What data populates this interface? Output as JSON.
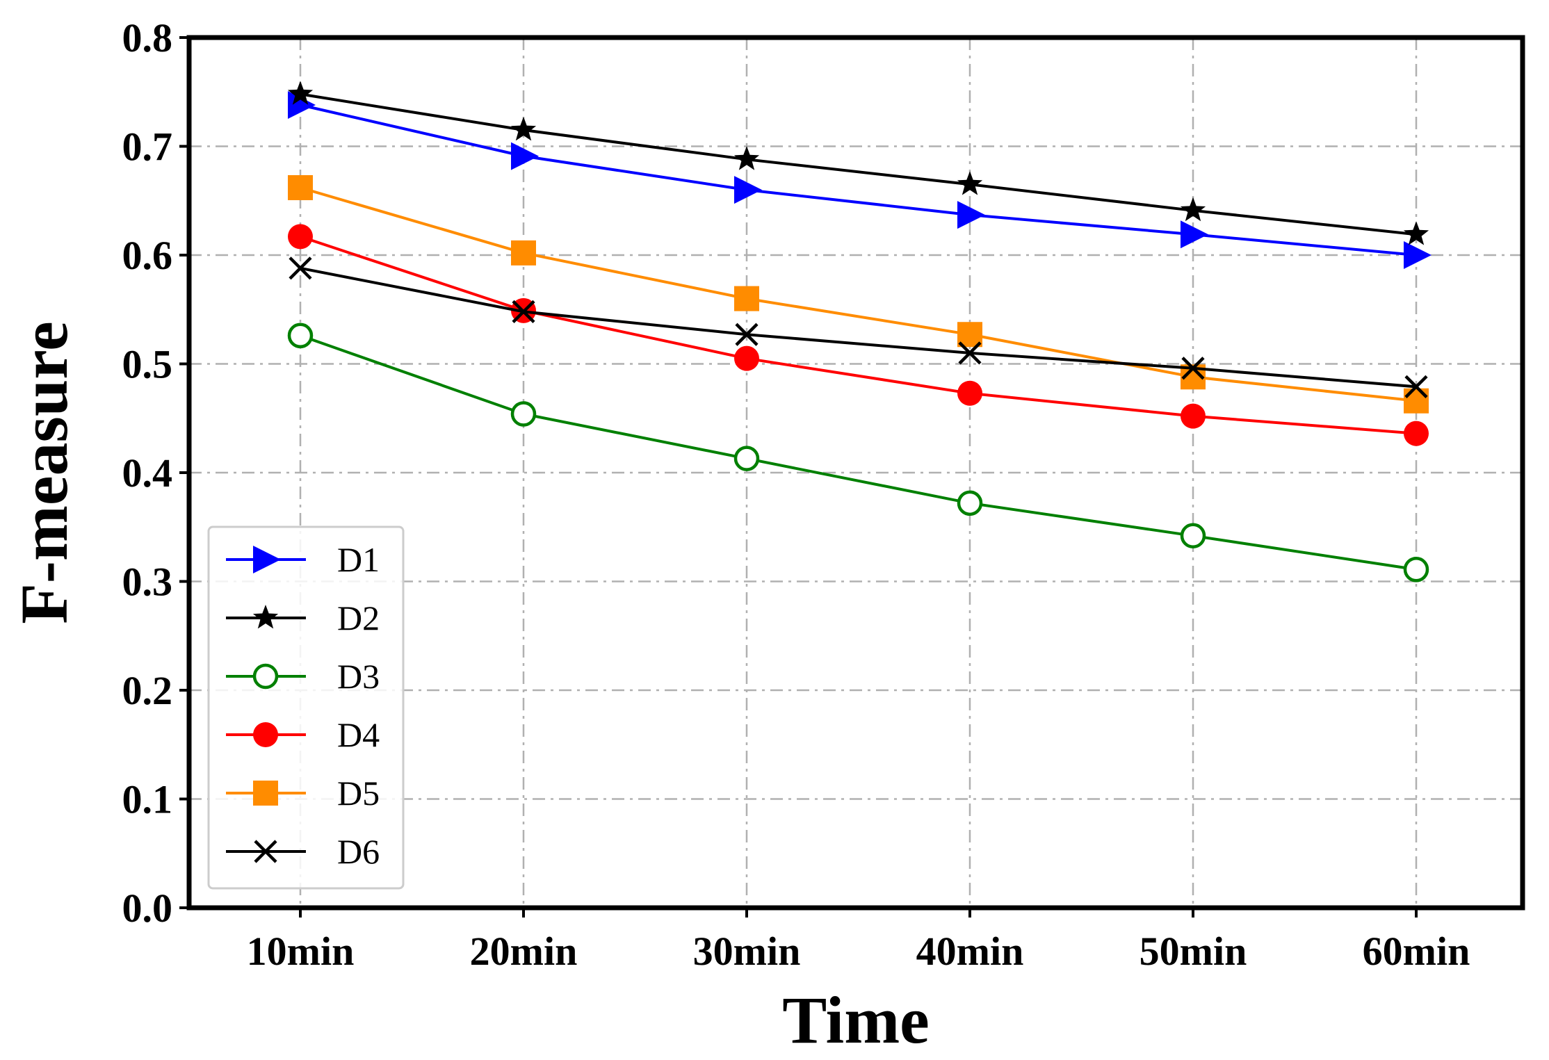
{
  "chart_data": {
    "type": "line",
    "title": "",
    "xlabel": "Time",
    "ylabel": "F-measure",
    "categories": [
      "10min",
      "20min",
      "30min",
      "40min",
      "50min",
      "60min"
    ],
    "ylim": [
      0.0,
      0.8
    ],
    "yticks": [
      "0.0",
      "0.1",
      "0.2",
      "0.3",
      "0.4",
      "0.5",
      "0.6",
      "0.7",
      "0.8"
    ],
    "grid": true,
    "legend_position": "lower-left",
    "series": [
      {
        "name": "D1",
        "color": "#0000ff",
        "marker": "triangle-right",
        "values": [
          0.738,
          0.691,
          0.66,
          0.637,
          0.619,
          0.6
        ]
      },
      {
        "name": "D2",
        "color": "#000000",
        "marker": "star",
        "values": [
          0.748,
          0.715,
          0.688,
          0.665,
          0.641,
          0.619
        ]
      },
      {
        "name": "D3",
        "color": "#008000",
        "marker": "open-circle",
        "values": [
          0.526,
          0.454,
          0.413,
          0.372,
          0.342,
          0.311
        ]
      },
      {
        "name": "D4",
        "color": "#ff0000",
        "marker": "filled-circle",
        "values": [
          0.617,
          0.549,
          0.505,
          0.473,
          0.452,
          0.436
        ]
      },
      {
        "name": "D5",
        "color": "#ff8c00",
        "marker": "square",
        "values": [
          0.662,
          0.602,
          0.56,
          0.527,
          0.488,
          0.466
        ]
      },
      {
        "name": "D6",
        "color": "#000000",
        "marker": "x",
        "values": [
          0.588,
          0.548,
          0.527,
          0.51,
          0.496,
          0.479
        ]
      }
    ]
  }
}
